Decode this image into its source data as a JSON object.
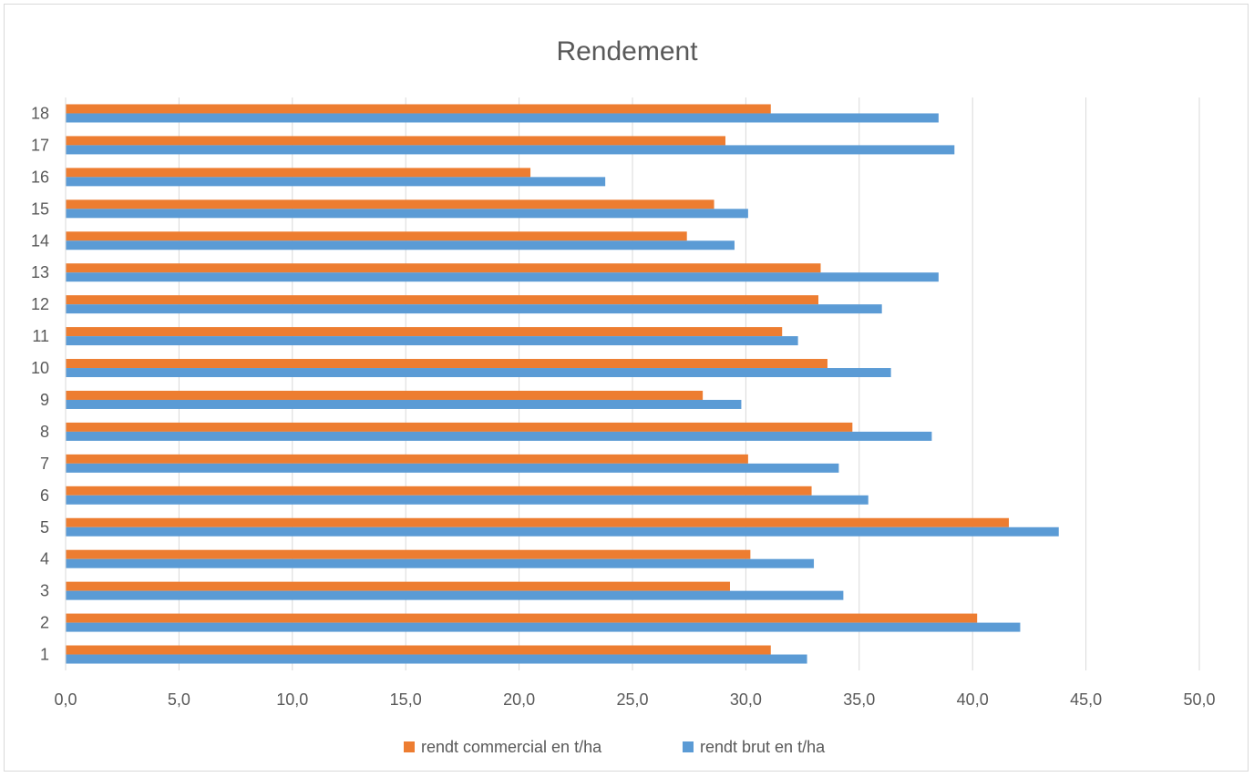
{
  "chart_data": {
    "type": "bar",
    "orientation": "horizontal",
    "title": "Rendement",
    "categories": [
      "1",
      "2",
      "3",
      "4",
      "5",
      "6",
      "7",
      "8",
      "9",
      "10",
      "11",
      "12",
      "13",
      "14",
      "15",
      "16",
      "17",
      "18"
    ],
    "series": [
      {
        "name": "rendt commercial en t/ha",
        "color": "#ed7d31",
        "values": [
          31.1,
          40.2,
          29.3,
          30.2,
          41.6,
          32.9,
          30.1,
          34.7,
          28.1,
          33.6,
          31.6,
          33.2,
          33.3,
          27.4,
          28.6,
          20.5,
          29.1,
          31.1
        ]
      },
      {
        "name": "rendt brut en t/ha",
        "color": "#5b9bd5",
        "values": [
          32.7,
          42.1,
          34.3,
          33.0,
          43.8,
          35.4,
          34.1,
          38.2,
          29.8,
          36.4,
          32.3,
          36.0,
          38.5,
          29.5,
          30.1,
          23.8,
          39.2,
          38.5
        ]
      }
    ],
    "xlim": [
      0,
      50
    ],
    "xticks": [
      "0,0",
      "5,0",
      "10,0",
      "15,0",
      "20,0",
      "25,0",
      "30,0",
      "35,0",
      "40,0",
      "45,0",
      "50,0"
    ],
    "grid": true,
    "legend_position": "bottom"
  }
}
